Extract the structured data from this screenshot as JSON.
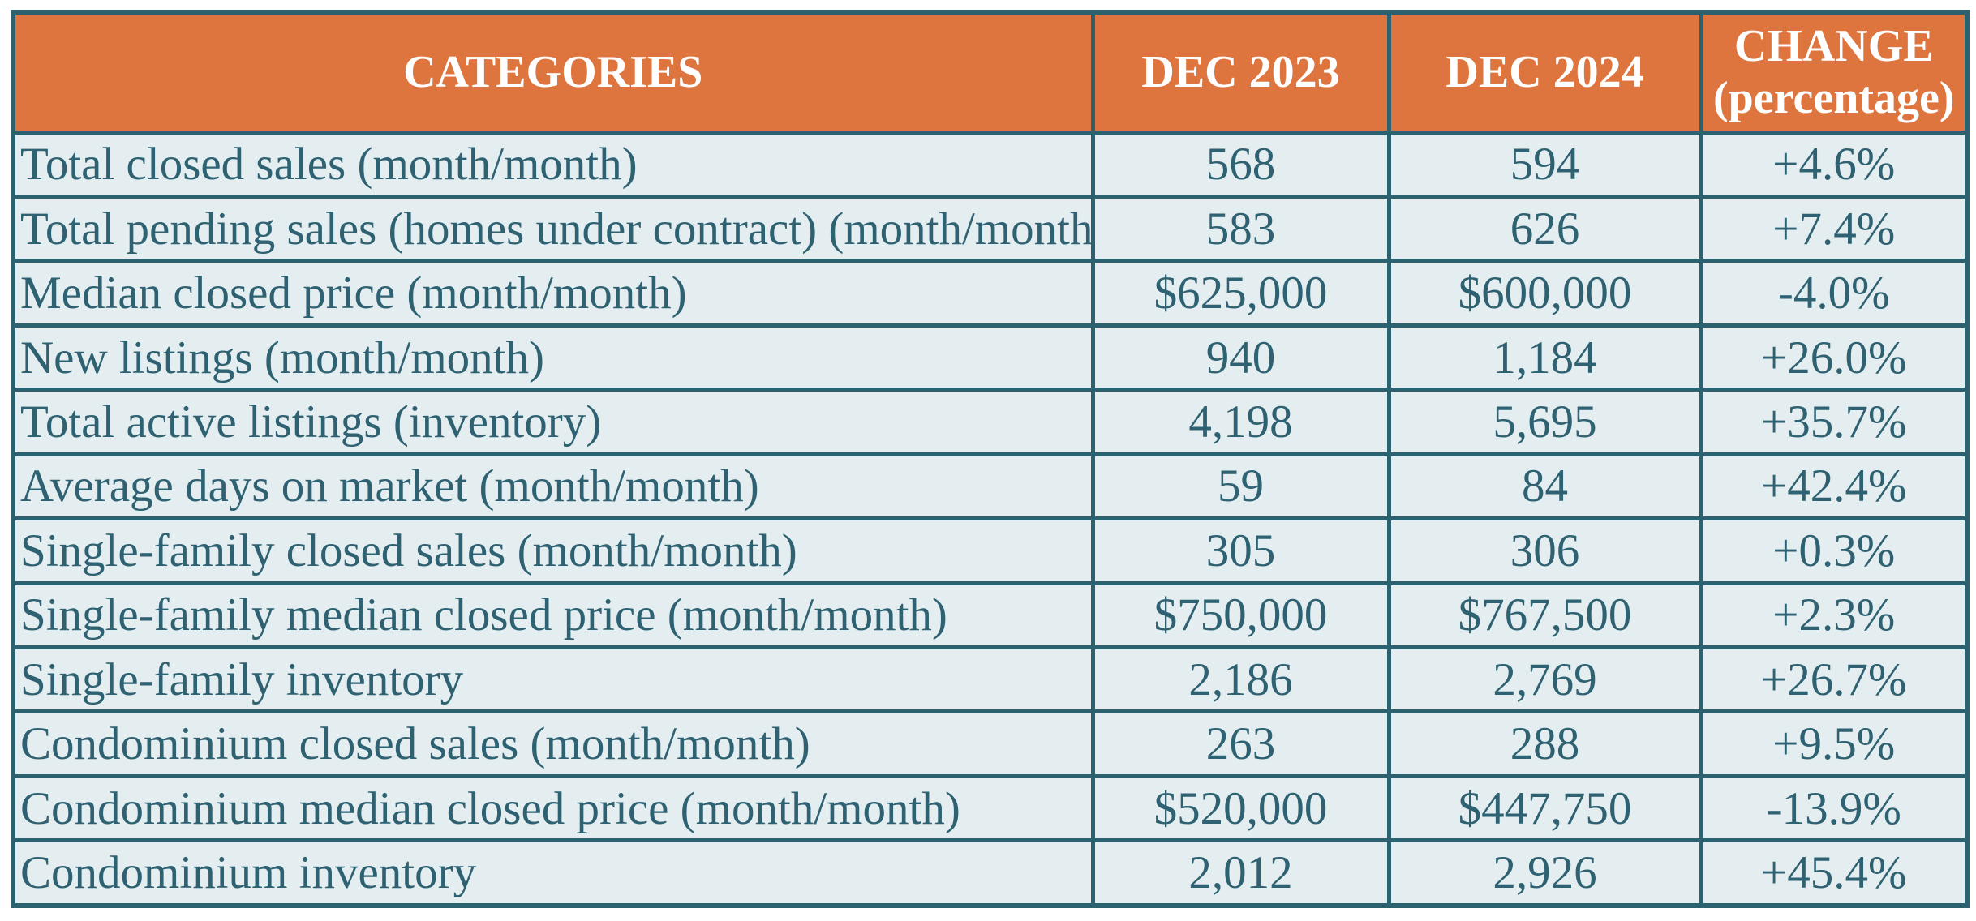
{
  "colors": {
    "border": "#2c6270",
    "header_bg": "#df753e",
    "header_text": "#ffffff",
    "cell_bg": "#e4edef",
    "text": "#2e6171",
    "page_bg": "#ffffff"
  },
  "chart_data": {
    "type": "table",
    "columns": [
      "CATEGORIES",
      "DEC 2023",
      "DEC 2024",
      "CHANGE (percentage)"
    ],
    "rows": [
      {
        "category": "Total closed sales (month/month)",
        "dec_2023": "568",
        "dec_2024": "594",
        "change_pct": "+4.6%"
      },
      {
        "category": "Total pending sales (homes under contract) (month/month)",
        "dec_2023": "583",
        "dec_2024": "626",
        "change_pct": "+7.4%"
      },
      {
        "category": "Median closed price (month/month)",
        "dec_2023": "$625,000",
        "dec_2024": "$600,000",
        "change_pct": "-4.0%"
      },
      {
        "category": "New listings (month/month)",
        "dec_2023": "940",
        "dec_2024": "1,184",
        "change_pct": "+26.0%"
      },
      {
        "category": "Total active listings (inventory)",
        "dec_2023": "4,198",
        "dec_2024": "5,695",
        "change_pct": "+35.7%"
      },
      {
        "category": "Average days on market (month/month)",
        "dec_2023": "59",
        "dec_2024": "84",
        "change_pct": "+42.4%"
      },
      {
        "category": "Single-family closed sales (month/month)",
        "dec_2023": "305",
        "dec_2024": "306",
        "change_pct": "+0.3%"
      },
      {
        "category": "Single-family median closed price (month/month)",
        "dec_2023": "$750,000",
        "dec_2024": "$767,500",
        "change_pct": "+2.3%"
      },
      {
        "category": "Single-family inventory",
        "dec_2023": "2,186",
        "dec_2024": "2,769",
        "change_pct": "+26.7%"
      },
      {
        "category": "Condominium closed sales (month/month)",
        "dec_2023": "263",
        "dec_2024": "288",
        "change_pct": "+9.5%"
      },
      {
        "category": "Condominium median closed price (month/month)",
        "dec_2023": "$520,000",
        "dec_2024": "$447,750",
        "change_pct": "-13.9%"
      },
      {
        "category": "Condominium inventory",
        "dec_2023": "2,012",
        "dec_2024": "2,926",
        "change_pct": "+45.4%"
      }
    ]
  }
}
